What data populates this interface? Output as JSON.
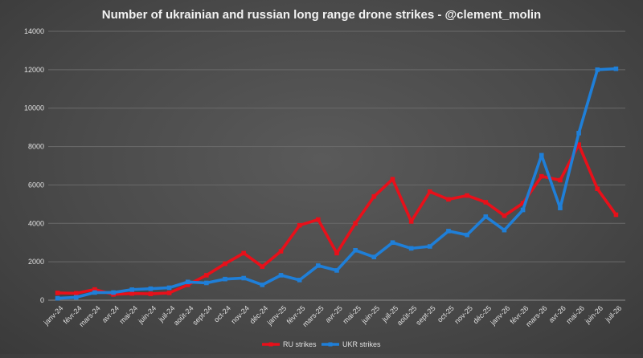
{
  "chart_data": {
    "type": "line",
    "title": "Number of ukrainian and russian long range drone strikes - @clement_molin",
    "xlabel": "",
    "ylabel": "",
    "ylim": [
      0,
      14000
    ],
    "yticks": [
      "0",
      "2000",
      "4000",
      "6000",
      "8000",
      "10000",
      "12000",
      "14000"
    ],
    "grid": true,
    "legend_position": "bottom",
    "categories": [
      "janv-24",
      "févr-24",
      "mars-24",
      "avr-24",
      "mai-24",
      "juin-24",
      "juil-24",
      "août-24",
      "sept-24",
      "oct-24",
      "nov-24",
      "déc-24",
      "janv-25",
      "févr-25",
      "mars-25",
      "avr-25",
      "mai-25",
      "juin-25",
      "juil-25",
      "août-25",
      "sept-25",
      "oct-25",
      "nov-25",
      "déc-25",
      "janv-26",
      "févr-26",
      "mars-26",
      "avr-26",
      "mai-26",
      "juin-26",
      "juil-26"
    ],
    "series": [
      {
        "name": "RU strikes",
        "color": "#e8101a",
        "values": [
          380,
          360,
          560,
          300,
          350,
          330,
          380,
          800,
          1300,
          1900,
          2450,
          1750,
          2550,
          3900,
          4200,
          2450,
          4000,
          5400,
          6300,
          4100,
          5650,
          5250,
          5450,
          5100,
          4400,
          5050,
          6450,
          6250,
          8100,
          5800,
          4450
        ]
      },
      {
        "name": "UKR strikes",
        "color": "#1f7fd8",
        "values": [
          100,
          150,
          400,
          400,
          550,
          600,
          650,
          950,
          900,
          1100,
          1150,
          800,
          1300,
          1050,
          1800,
          1550,
          2600,
          2250,
          3000,
          2700,
          2800,
          3600,
          3400,
          4350,
          3650,
          4700,
          7550,
          4800,
          8700,
          12000,
          12050
        ]
      }
    ]
  }
}
